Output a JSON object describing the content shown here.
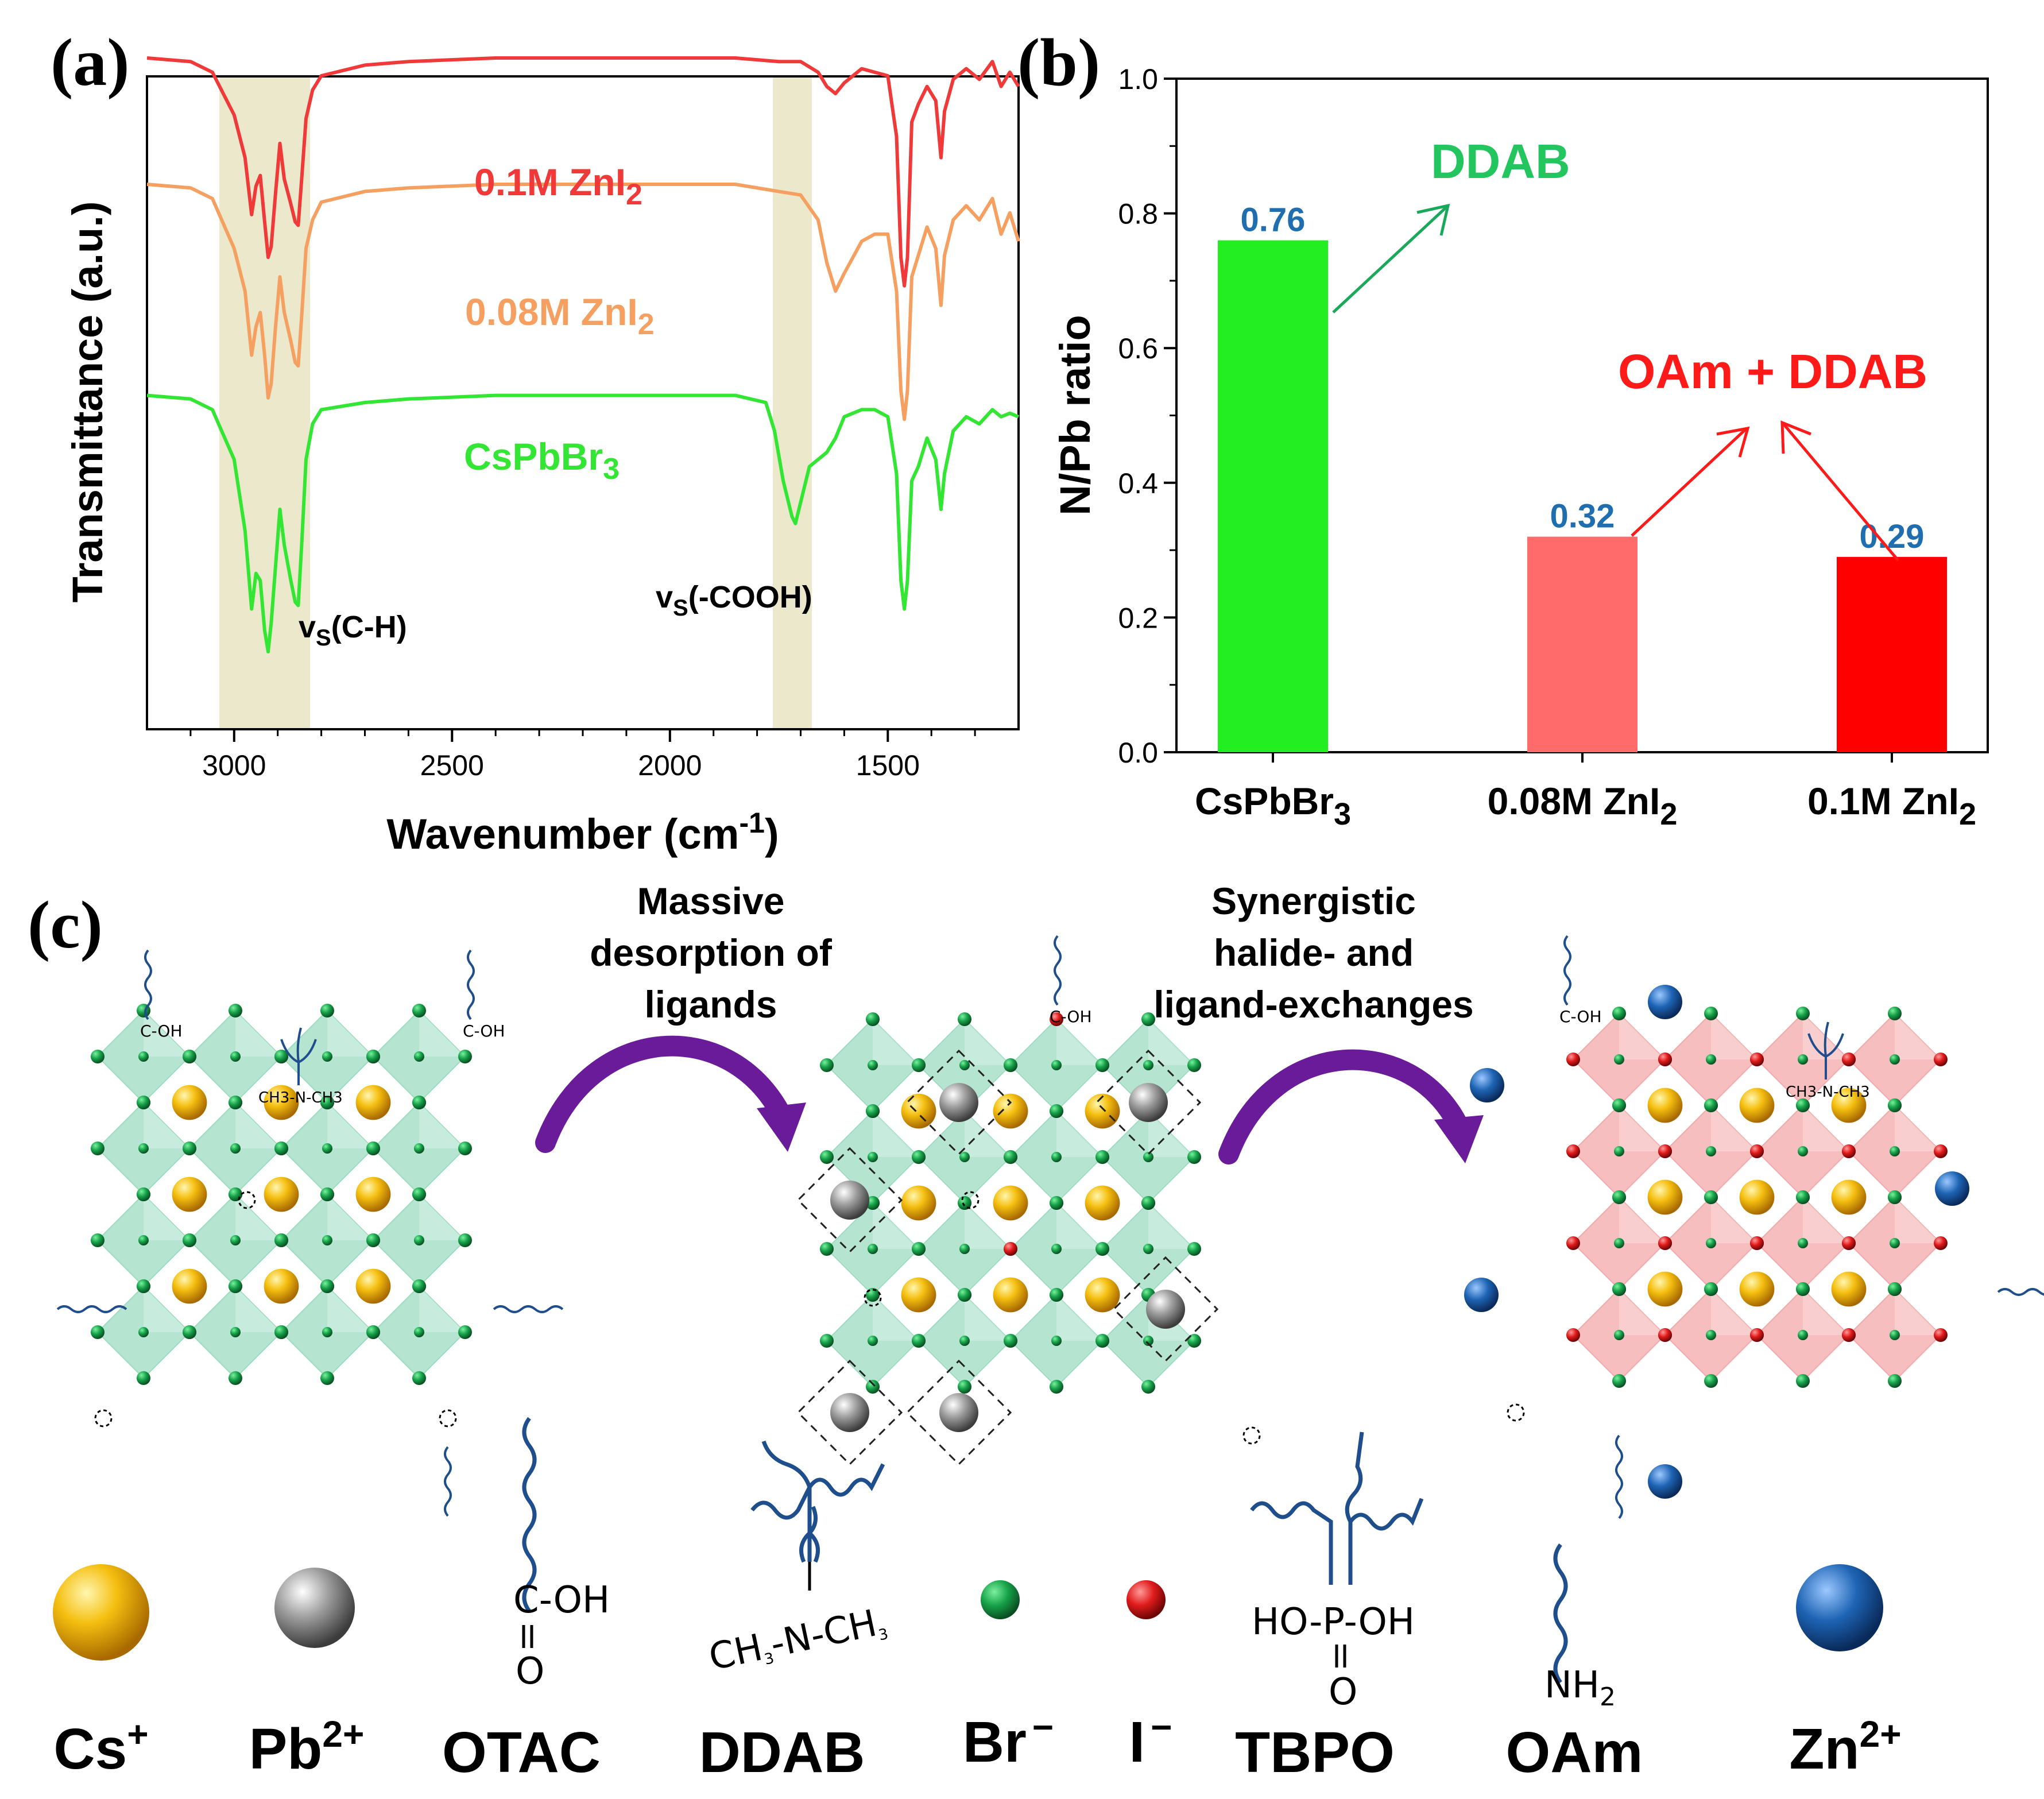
{
  "panels": {
    "a": "(a)",
    "b": "(b)",
    "c": "(c)"
  },
  "chart_data": [
    {
      "type": "line",
      "panel": "(a)",
      "title": "",
      "xlabel": "Wavenumber (cm",
      "xlabel_sup": "-1",
      "xlabel_end": ")",
      "ylabel": "Transmittance (a.u.)",
      "xlim": [
        3200,
        1200
      ],
      "x_ticks": [
        3000,
        2500,
        2000,
        1500
      ],
      "y_ticks": [],
      "series": [
        {
          "name": "0.1M ZnI2",
          "label": "0.1M ZnI",
          "label_sub": "2",
          "color": "#f03a3a",
          "x": [
            3200,
            3100,
            3050,
            3000,
            2975,
            2960,
            2950,
            2940,
            2930,
            2922,
            2915,
            2905,
            2895,
            2885,
            2870,
            2860,
            2853,
            2845,
            2835,
            2820,
            2800,
            2700,
            2600,
            2400,
            2200,
            2000,
            1850,
            1750,
            1700,
            1660,
            1640,
            1620,
            1600,
            1560,
            1530,
            1500,
            1480,
            1470,
            1462,
            1455,
            1445,
            1430,
            1410,
            1390,
            1378,
            1370,
            1350,
            1320,
            1290,
            1260,
            1240,
            1220,
            1200
          ],
          "y": [
            0.7,
            0.69,
            0.66,
            0.54,
            0.42,
            0.26,
            0.34,
            0.37,
            0.24,
            0.14,
            0.17,
            0.32,
            0.46,
            0.36,
            0.29,
            0.24,
            0.23,
            0.36,
            0.53,
            0.61,
            0.65,
            0.68,
            0.69,
            0.7,
            0.7,
            0.7,
            0.7,
            0.69,
            0.69,
            0.66,
            0.62,
            0.6,
            0.63,
            0.67,
            0.66,
            0.65,
            0.48,
            0.14,
            0.06,
            0.14,
            0.52,
            0.57,
            0.62,
            0.58,
            0.42,
            0.55,
            0.64,
            0.67,
            0.64,
            0.69,
            0.62,
            0.66,
            0.62
          ]
        },
        {
          "name": "0.08M ZnI2",
          "label": "0.08M ZnI",
          "label_sub": "2",
          "color": "#f5a060",
          "x": [
            3200,
            3100,
            3050,
            3000,
            2975,
            2960,
            2950,
            2940,
            2930,
            2922,
            2915,
            2905,
            2895,
            2885,
            2870,
            2860,
            2853,
            2845,
            2835,
            2820,
            2800,
            2700,
            2600,
            2400,
            2200,
            2000,
            1850,
            1750,
            1700,
            1660,
            1640,
            1620,
            1600,
            1560,
            1530,
            1500,
            1480,
            1470,
            1462,
            1455,
            1445,
            1430,
            1410,
            1390,
            1378,
            1370,
            1350,
            1320,
            1290,
            1260,
            1240,
            1220,
            1200
          ],
          "y": [
            0.7,
            0.69,
            0.66,
            0.52,
            0.4,
            0.22,
            0.3,
            0.34,
            0.22,
            0.1,
            0.14,
            0.3,
            0.44,
            0.34,
            0.26,
            0.2,
            0.19,
            0.33,
            0.52,
            0.6,
            0.65,
            0.68,
            0.69,
            0.7,
            0.7,
            0.7,
            0.7,
            0.68,
            0.67,
            0.6,
            0.48,
            0.4,
            0.45,
            0.54,
            0.56,
            0.56,
            0.4,
            0.12,
            0.04,
            0.12,
            0.44,
            0.5,
            0.58,
            0.52,
            0.36,
            0.5,
            0.6,
            0.64,
            0.6,
            0.66,
            0.56,
            0.62,
            0.54
          ]
        },
        {
          "name": "CsPbBr3",
          "label": "CsPbBr",
          "label_sub": "3",
          "color": "#33e633",
          "x": [
            3200,
            3100,
            3050,
            3000,
            2975,
            2960,
            2950,
            2940,
            2930,
            2922,
            2915,
            2905,
            2895,
            2885,
            2870,
            2860,
            2853,
            2845,
            2835,
            2820,
            2800,
            2700,
            2600,
            2400,
            2200,
            2000,
            1850,
            1780,
            1760,
            1740,
            1720,
            1712,
            1700,
            1680,
            1660,
            1640,
            1620,
            1600,
            1560,
            1530,
            1500,
            1480,
            1470,
            1462,
            1455,
            1445,
            1430,
            1410,
            1390,
            1378,
            1370,
            1350,
            1320,
            1290,
            1260,
            1240,
            1220,
            1200
          ],
          "y": [
            0.72,
            0.71,
            0.68,
            0.54,
            0.34,
            0.12,
            0.22,
            0.2,
            0.06,
            0.0,
            0.08,
            0.24,
            0.4,
            0.3,
            0.2,
            0.14,
            0.13,
            0.3,
            0.54,
            0.64,
            0.68,
            0.7,
            0.71,
            0.72,
            0.72,
            0.72,
            0.72,
            0.7,
            0.62,
            0.48,
            0.38,
            0.36,
            0.42,
            0.52,
            0.54,
            0.56,
            0.6,
            0.66,
            0.68,
            0.68,
            0.66,
            0.5,
            0.2,
            0.12,
            0.2,
            0.48,
            0.52,
            0.6,
            0.54,
            0.4,
            0.5,
            0.62,
            0.66,
            0.64,
            0.68,
            0.66,
            0.67,
            0.66
          ]
        }
      ],
      "annotations": [
        {
          "text": "v",
          "sub": "S",
          "rest": "(C-H)"
        },
        {
          "text": "v",
          "sub": "S",
          "rest": "(-COOH)"
        }
      ],
      "shaded_regions": [
        [
          3030,
          2825
        ],
        [
          1760,
          1675
        ]
      ]
    },
    {
      "type": "bar",
      "panel": "(b)",
      "title": "",
      "xlabel": "",
      "ylabel": "N/Pb ratio",
      "ylim": [
        0.0,
        1.0
      ],
      "y_ticks": [
        "0.0",
        "0.2",
        "0.4",
        "0.6",
        "0.8",
        "1.0"
      ],
      "categories": [
        {
          "label": "CsPbBr",
          "sub": "3"
        },
        {
          "label": "0.08M ZnI",
          "sub": "2"
        },
        {
          "label": "0.1M ZnI",
          "sub": "2"
        }
      ],
      "values": [
        0.76,
        0.32,
        0.29
      ],
      "value_labels": [
        "0.76",
        "0.32",
        "0.29"
      ],
      "colors": [
        "#22ee22",
        "#ff6b6b",
        "#ff0000"
      ],
      "annotations": [
        {
          "text": "DDAB",
          "color": "#22c55e"
        },
        {
          "text": "OAm + DDAB",
          "color": "#ff1a1a"
        }
      ]
    }
  ],
  "schematic": {
    "step1": [
      "Massive",
      "desorption of",
      "ligands"
    ],
    "step2": [
      "Synergistic",
      "halide- and",
      "ligand-exchanges"
    ],
    "ligand_text": {
      "cooh": "C-OH",
      "o": "O",
      "dbl": "=",
      "ch3": "CH",
      "n": "N",
      "nh2": "NH",
      "phos": "HO-P-OH",
      "s3": "3",
      "s2": "2"
    },
    "legend": [
      {
        "name": "Cs",
        "sup": "+"
      },
      {
        "name": "Pb",
        "sup": "2+"
      },
      {
        "name": "OTAC",
        "sup": ""
      },
      {
        "name": "DDAB",
        "sup": ""
      },
      {
        "name": "Br",
        "sup": "−"
      },
      {
        "name": "I",
        "sup": "−"
      },
      {
        "name": "TBPO",
        "sup": ""
      },
      {
        "name": "OAm",
        "sup": ""
      },
      {
        "name": "Zn",
        "sup": "2+"
      }
    ],
    "colors": {
      "cs": "#f2b705",
      "pb": "#8c8c8c",
      "br": "#1a9c4a",
      "i": "#d81818",
      "zn": "#1e64b4",
      "octa_green": "#9cdcc0",
      "octa_pink": "#f3a8a8",
      "arrow": "#6a1b9a",
      "ligand": "#1f4e8c"
    }
  }
}
